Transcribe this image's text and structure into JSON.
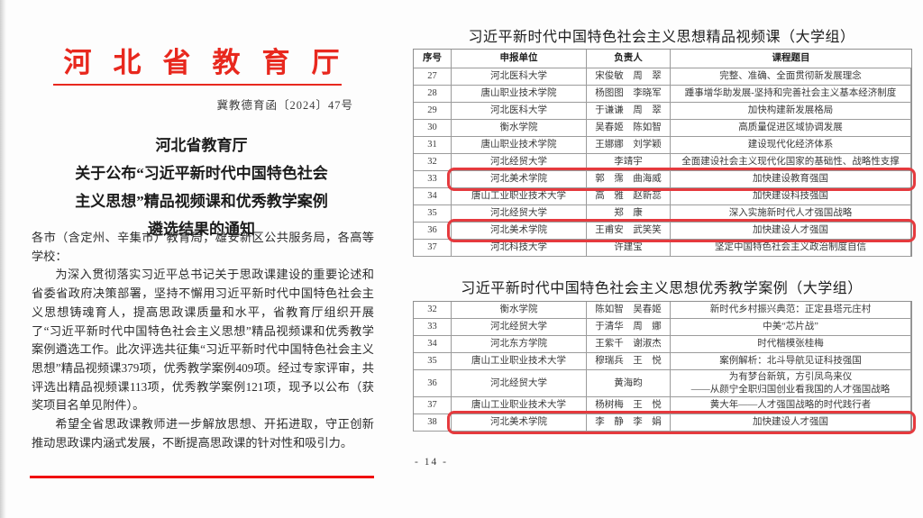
{
  "colors": {
    "brand_red": "#e8281e",
    "rule_red": "#f01010",
    "highlight_red": "#e53a3e",
    "table_border": "#9b9b9b"
  },
  "left_page": {
    "agency_name": "河北省教育厅",
    "doc_number": "冀教德育函〔2024〕47号",
    "title_lines": "河北省教育厅\n关于公布“习近平新时代中国特色社会\n主义思想”精品视频课和优秀教学案例\n遴选结果的通知",
    "paragraphs": [
      {
        "indent": false,
        "text": "各市（含定州、辛集市）教育局，雄安新区公共服务局，各高等学校："
      },
      {
        "indent": true,
        "text": "为深入贯彻落实习近平总书记关于思政课建设的重要论述和省委省政府决策部署，坚持不懈用习近平新时代中国特色社会主义思想铸魂育人，提高思政课质量和水平，省教育厅组织开展了“习近平新时代中国特色社会主义思想”精品视频课和优秀教学案例遴选工作。此次评选共征集“习近平新时代中国特色社会主义思想”精品视频课379项，优秀教学案例409项。经过专家评审，共评选出精品视频课113项，优秀教学案例121项，现予以公布（获奖项目名单见附件）。"
      },
      {
        "indent": true,
        "text": "希望全省思政课教师进一步解放思想、开拓进取，守正创新推动思政课内涵式发展，不断提高思政课的针对性和吸引力。"
      }
    ]
  },
  "right_page": {
    "page_number": "- 14 -",
    "video_table": {
      "title": "习近平新时代中国特色社会主义思想精品视频课（大学组）",
      "headers": [
        "序号",
        "申报单位",
        "负责人",
        "课程题目"
      ],
      "rows": [
        {
          "no": "27",
          "org": "河北医科大学",
          "person": "宋俊敏　周　翠",
          "course": "完整、准确、全面贯彻新发展理念",
          "highlight": false
        },
        {
          "no": "28",
          "org": "唐山职业技术学院",
          "person": "杨图图　李晓军",
          "course": "踵事增华助发展-坚持和完善社会主义基本经济制度",
          "highlight": false
        },
        {
          "no": "29",
          "org": "河北医科大学",
          "person": "于谦谦　周　翠",
          "course": "加快构建新发展格局",
          "highlight": false
        },
        {
          "no": "30",
          "org": "衡水学院",
          "person": "吴春姬　陈如智",
          "course": "高质量促进区域协调发展",
          "highlight": false
        },
        {
          "no": "31",
          "org": "唐山职业技术学院",
          "person": "王娜娜　刘学颖",
          "course": "建设现代化经济体系",
          "highlight": false
        },
        {
          "no": "32",
          "org": "河北经贸大学",
          "person": "李靖宇",
          "course": "全面建设社会主义现代化国家的基础性、战略性支撑",
          "highlight": false
        },
        {
          "no": "33",
          "org": "河北美术学院",
          "person": "郭　霈　曲海威",
          "course": "加快建设教育强国",
          "highlight": true
        },
        {
          "no": "34",
          "org": "唐山工业职业技术大学",
          "person": "高　雅　赵新蕊",
          "course": "加快建设科技强国",
          "highlight": false
        },
        {
          "no": "35",
          "org": "河北经贸大学",
          "person": "郑　康",
          "course": "深入实施新时代人才强国战略",
          "highlight": false
        },
        {
          "no": "36",
          "org": "河北美术学院",
          "person": "王甫安　武笑笑",
          "course": "加快建设人才强国",
          "highlight": true
        },
        {
          "no": "37",
          "org": "河北科技大学",
          "person": "许建宝",
          "course": "坚定中国特色社会主义政治制度自信",
          "highlight": false
        }
      ]
    },
    "case_table": {
      "title": "习近平新时代中国特色社会主义思想优秀教学案例（大学组）",
      "rows": [
        {
          "no": "32",
          "org": "衡水学院",
          "person": "陈如智　吴春姬",
          "course": "新时代乡村振兴典范：正定县塔元庄村",
          "highlight": false
        },
        {
          "no": "33",
          "org": "河北经贸大学",
          "person": "于清华　周　娜",
          "course": "中美“芯片战”",
          "highlight": false
        },
        {
          "no": "34",
          "org": "河北东方学院",
          "person": "王紫千　谢淑杰",
          "course": "时代楷模张桂梅",
          "highlight": false
        },
        {
          "no": "35",
          "org": "唐山工业职业技术大学",
          "person": "穆瑞兵　王　悦",
          "course": "案例解析：北斗导航见证科技强国",
          "highlight": false
        },
        {
          "no": "36",
          "org": "河北经贸大学",
          "person": "黄海昀",
          "course": "为有梦台新筑，方引凤鸟来仪\n——从颜宁全职归国创业看我国的人才强国战略",
          "highlight": false
        },
        {
          "no": "37",
          "org": "唐山工业职业技术大学",
          "person": "杨树梅　王　悦",
          "course": "黄大年——人才强国战略的时代践行者",
          "highlight": false
        },
        {
          "no": "38",
          "org": "河北美术学院",
          "person": "李　静　李　娟",
          "course": "加快建设人才强国",
          "highlight": true
        }
      ]
    }
  }
}
